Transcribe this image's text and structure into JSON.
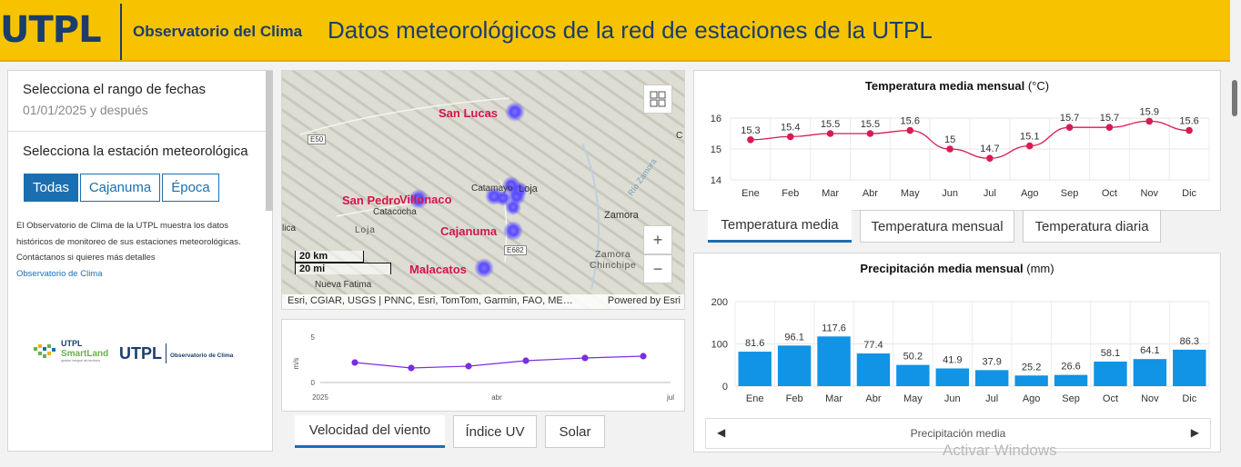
{
  "header": {
    "logo": "UTPL",
    "subtitle": "Observatorio del Clima",
    "title": "Datos meteorológicos de la red de estaciones de la UTPL"
  },
  "left": {
    "date_label": "Selecciona el rango de fechas",
    "date_value": "01/01/2025 y después",
    "station_label": "Selecciona la estación meteorológica",
    "buttons": [
      "Todas",
      "Cajanuma",
      "Época"
    ],
    "desc_lines": [
      "El Observatorio de Clima de la UTPL muestra los datos",
      "históricos de monitoreo de sus  estaciones meteorológicas.",
      "Contáctanos si quieres más detalles"
    ],
    "link": "Observatorio de Clima",
    "logo_smartland_1": "UTPL",
    "logo_smartland_2": "SmartLand",
    "logo_smartland_3": "gestión integral del territorio",
    "logo_utpl": "UTPL",
    "logo_obs": "Observatorio de Clima"
  },
  "map": {
    "stations": [
      "San Lucas",
      "San Pedro",
      "Villonaco",
      "Cajanuma",
      "Malacatos"
    ],
    "places": [
      "Catamayo",
      "Loja",
      "Catacocha",
      "Loja",
      "Zamora",
      "Nueva Fatima",
      "lica",
      "C"
    ],
    "zones": [
      "Zamora",
      "Chinchipe"
    ],
    "roads": [
      "E50",
      "E682"
    ],
    "river": "Río Zamora",
    "scale_km": "20 km",
    "scale_mi": "20 mi",
    "attribution": "Esri, CGIAR, USGS | PNNC, Esri, TomTom, Garmin, FAO, ME…",
    "powered": "Powered by Esri",
    "zoom_in": "+",
    "zoom_out": "−",
    "accent": "#5a4bff"
  },
  "wind": {
    "ylabel": "m/s",
    "tabs": [
      "Velocidad del viento",
      "Índice UV",
      "Solar"
    ]
  },
  "temp": {
    "title": "Temperatura media mensual",
    "unit": "(°C)",
    "tabs": [
      "Temperatura media",
      "Temperatura mensual",
      "Temperatura diaria"
    ]
  },
  "prec": {
    "title": "Precipitación media mensual",
    "unit": "(mm)",
    "footer": "Precipitación media"
  },
  "watermark": "Activar Windows",
  "chart_data": [
    {
      "type": "line",
      "title": "",
      "x": [
        "2025-01",
        "2025-02",
        "2025-03",
        "2025-04",
        "2025-05",
        "2025-06"
      ],
      "values": [
        2.2,
        1.6,
        1.8,
        2.4,
        2.7,
        2.9
      ],
      "xticks": [
        "2025",
        "abr",
        "jul"
      ],
      "ylabel": "m/s",
      "yticks": [
        0,
        5
      ],
      "ylim": [
        0,
        5
      ],
      "color": "#7b2ee0"
    },
    {
      "type": "line",
      "title": "Temperatura media mensual",
      "ylabel": "",
      "categories": [
        "Ene",
        "Feb",
        "Mar",
        "Abr",
        "May",
        "Jun",
        "Jul",
        "Ago",
        "Sep",
        "Oct",
        "Nov",
        "Dic"
      ],
      "values": [
        15.3,
        15.4,
        15.5,
        15.5,
        15.6,
        15,
        14.7,
        15.1,
        15.7,
        15.7,
        15.9,
        15.6
      ],
      "yticks": [
        14,
        15,
        16
      ],
      "ylim": [
        14,
        16
      ],
      "grid": true,
      "color": "#d81b50"
    },
    {
      "type": "bar",
      "title": "Precipitación media mensual",
      "categories": [
        "Ene",
        "Feb",
        "Mar",
        "Abr",
        "May",
        "Jun",
        "Jul",
        "Ago",
        "Sep",
        "Oct",
        "Nov",
        "Dic"
      ],
      "values": [
        81.6,
        96.1,
        117.6,
        77.4,
        50.2,
        41.9,
        37.9,
        25.2,
        26.6,
        58.1,
        64.1,
        86.3
      ],
      "yticks": [
        0,
        100,
        200
      ],
      "ylim": [
        0,
        200
      ],
      "grid": true,
      "color": "#1193e6"
    }
  ]
}
